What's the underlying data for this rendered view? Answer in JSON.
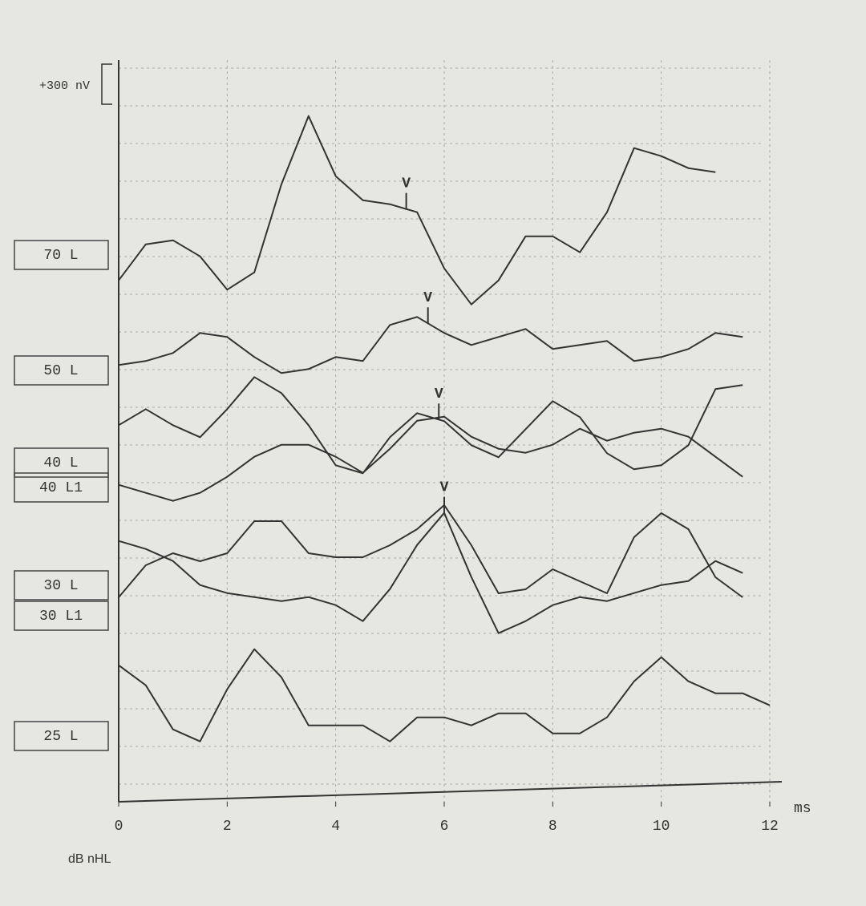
{
  "chart_data": {
    "type": "line",
    "xlabel": "ms",
    "footnote": "dB nHL",
    "scale_bar": {
      "label": "+300 nV",
      "value": 300
    },
    "x": [
      0,
      0.5,
      1,
      1.5,
      2,
      2.5,
      3,
      3.5,
      4,
      4.5,
      5,
      5.5,
      6,
      6.5,
      7,
      7.5,
      8,
      8.5,
      9,
      9.5,
      10,
      10.5,
      11,
      11.5,
      12
    ],
    "xlim": [
      0,
      12
    ],
    "xticks": [
      0,
      2,
      4,
      6,
      8,
      10,
      12
    ],
    "grid": true,
    "series": [
      {
        "name": "70 L",
        "color": "#333333",
        "marker": {
          "label": "V",
          "x": 5.3
        },
        "values": [
          -190,
          80,
          110,
          -10,
          -260,
          -130,
          530,
          1040,
          590,
          410,
          380,
          320,
          -100,
          -370,
          -190,
          140,
          140,
          20,
          320,
          800,
          740,
          650,
          620,
          null,
          null
        ]
      },
      {
        "name": "50 L",
        "color": "#333333",
        "marker": {
          "label": "V",
          "x": 5.7
        },
        "values": [
          40,
          70,
          130,
          280,
          250,
          100,
          -20,
          10,
          100,
          70,
          340,
          400,
          280,
          190,
          250,
          310,
          160,
          190,
          220,
          70,
          100,
          160,
          280,
          250,
          null
        ]
      },
      {
        "name": "40 L",
        "color": "#333333",
        "marker": {
          "label": "V",
          "x": 5.9
        },
        "values": [
          280,
          400,
          280,
          190,
          400,
          640,
          520,
          280,
          -20,
          -80,
          190,
          370,
          310,
          130,
          40,
          250,
          460,
          340,
          70,
          -50,
          -20,
          130,
          550,
          580,
          null
        ]
      },
      {
        "name": "40 L1",
        "color": "#333333",
        "values": [
          20,
          -40,
          -100,
          -40,
          80,
          230,
          320,
          320,
          230,
          110,
          290,
          500,
          530,
          380,
          290,
          260,
          320,
          440,
          350,
          410,
          440,
          380,
          230,
          80,
          null
        ]
      },
      {
        "name": "30 L",
        "color": "#333333",
        "values": [
          -90,
          150,
          240,
          180,
          240,
          480,
          480,
          240,
          210,
          210,
          300,
          420,
          600,
          300,
          -60,
          -30,
          120,
          30,
          -60,
          360,
          540,
          420,
          60,
          -90,
          null
        ]
      },
      {
        "name": "30 L1",
        "color": "#333333",
        "marker": {
          "label": "V",
          "x": 6.0
        },
        "values": [
          560,
          500,
          410,
          230,
          170,
          140,
          110,
          140,
          80,
          -40,
          200,
          530,
          770,
          290,
          -130,
          -40,
          80,
          140,
          110,
          170,
          230,
          260,
          410,
          320,
          null
        ]
      },
      {
        "name": "25 L",
        "color": "#333333",
        "values": [
          530,
          380,
          50,
          -40,
          350,
          650,
          440,
          80,
          80,
          80,
          -40,
          140,
          140,
          80,
          170,
          170,
          20,
          20,
          140,
          410,
          590,
          410,
          320,
          320,
          230
        ]
      }
    ]
  }
}
